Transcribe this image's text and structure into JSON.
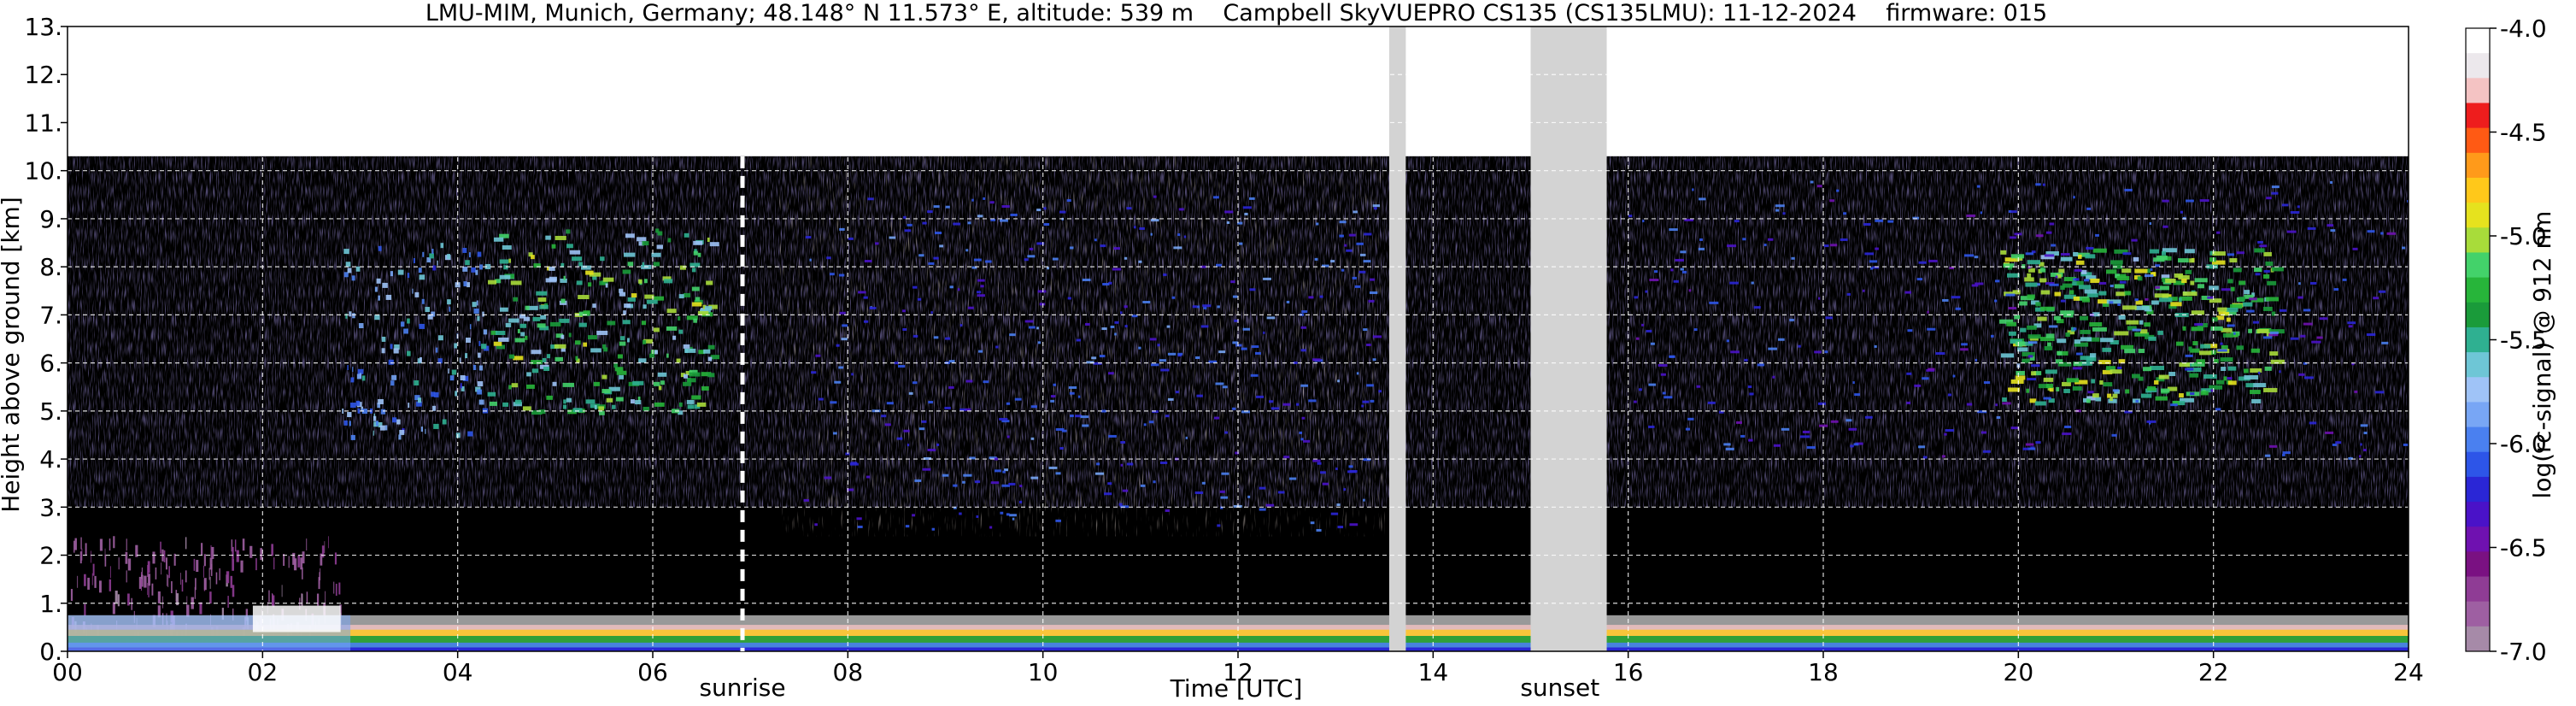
{
  "chart_data": {
    "type": "heatmap",
    "title": "LMU-MIM, Munich, Germany; 48.148° N 11.573° E, altitude: 539 m    Campbell SkyVUEPRO CS135 (CS135LMU): 11-12-2024    firmware: 015",
    "xlabel": "Time [UTC]",
    "ylabel": "Height above ground [km]",
    "xlim": [
      0,
      24
    ],
    "ylim": [
      0,
      13
    ],
    "x_ticks": [
      0,
      2,
      4,
      6,
      8,
      10,
      12,
      14,
      16,
      18,
      20,
      22,
      24
    ],
    "x_tick_labels": [
      "00",
      "02",
      "04",
      "06",
      "08",
      "10",
      "12",
      "14",
      "16",
      "18",
      "20",
      "22",
      "24"
    ],
    "y_ticks": [
      0,
      1,
      2,
      3,
      4,
      5,
      6,
      7,
      8,
      9,
      10,
      11,
      12,
      13
    ],
    "y_tick_labels": [
      "0.",
      "1.",
      "2.",
      "3.",
      "4.",
      "5.",
      "6.",
      "7.",
      "8.",
      "9.",
      "10.",
      "11.",
      "12.",
      "13."
    ],
    "grid": true,
    "measurement_top_km": 10.3,
    "missing_data_intervals": [
      [
        13.55,
        13.72
      ],
      [
        15.0,
        15.78
      ]
    ],
    "annotations": [
      {
        "x": 6.92,
        "label": "sunrise"
      },
      {
        "x": 15.3,
        "label": "sunset"
      }
    ],
    "colorbar": {
      "label": "log(rc-signal) @ 912 nm",
      "range": [
        -7.0,
        -4.0
      ],
      "ticks": [
        -7.0,
        -6.5,
        -6.0,
        -5.5,
        -5.0,
        -4.5,
        -4.0
      ],
      "tick_labels": [
        "-7.0",
        "-6.5",
        "-6.0",
        "-5.5",
        "-5.0",
        "-4.5",
        "-4.0"
      ],
      "colors": [
        "#a68aa8",
        "#9e5fa2",
        "#8f3c95",
        "#7a1182",
        "#6f11b0",
        "#4a12c8",
        "#2a26d6",
        "#2d55e8",
        "#4a80f0",
        "#78a6f5",
        "#9fc3f7",
        "#6ec6d6",
        "#2fb091",
        "#1a9b3a",
        "#27b53a",
        "#43d26a",
        "#a8dc3a",
        "#e6e21e",
        "#ffc81a",
        "#ff9a1a",
        "#ff5a14",
        "#ee1d1d",
        "#f4c3c3",
        "#ece8ec",
        "#ffffff"
      ]
    }
  }
}
